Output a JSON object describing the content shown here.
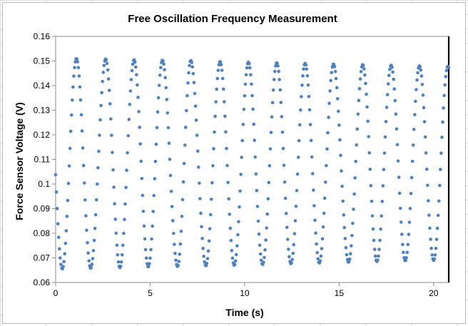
{
  "chart_data": {
    "type": "scatter",
    "title": "Free Oscillation Frequency Measurement",
    "xlabel": "Time (s)",
    "ylabel": "Force Sensor Voltage (V)",
    "xlim": [
      0,
      20.8
    ],
    "ylim": [
      0.06,
      0.16
    ],
    "x_ticks": [
      "0",
      "5",
      "10",
      "15",
      "20"
    ],
    "x_tick_values": [
      0,
      5,
      10,
      15,
      20
    ],
    "y_ticks": [
      "0.06",
      "0.07",
      "0.08",
      "0.09",
      "0.1",
      "0.11",
      "0.12",
      "0.13",
      "0.14",
      "0.15",
      "0.16"
    ],
    "y_tick_values": [
      0.06,
      0.07,
      0.08,
      0.09,
      0.1,
      0.11,
      0.12,
      0.13,
      0.14,
      0.15,
      0.16
    ],
    "grid": false,
    "legend": "none",
    "marker_color": "#4f81bd",
    "series": [
      {
        "sample_interval_s": 0.04,
        "t_end_s": 20.8,
        "peaks": [
          {
            "t": 1.1,
            "v": 0.151
          },
          {
            "t": 2.65,
            "v": 0.1508
          },
          {
            "t": 4.15,
            "v": 0.1505
          },
          {
            "t": 5.65,
            "v": 0.1503
          },
          {
            "t": 7.15,
            "v": 0.1502
          },
          {
            "t": 8.7,
            "v": 0.1498
          },
          {
            "t": 10.2,
            "v": 0.1495
          },
          {
            "t": 11.7,
            "v": 0.1493
          },
          {
            "t": 13.2,
            "v": 0.149
          },
          {
            "t": 14.7,
            "v": 0.1488
          },
          {
            "t": 16.25,
            "v": 0.1485
          },
          {
            "t": 17.75,
            "v": 0.1483
          },
          {
            "t": 19.25,
            "v": 0.148
          },
          {
            "t": 20.75,
            "v": 0.1478
          }
        ],
        "troughs": [
          {
            "t": 0.35,
            "v": 0.0655
          },
          {
            "t": 1.85,
            "v": 0.0658
          },
          {
            "t": 3.4,
            "v": 0.066
          },
          {
            "t": 4.9,
            "v": 0.0663
          },
          {
            "t": 6.45,
            "v": 0.0665
          },
          {
            "t": 7.95,
            "v": 0.0668
          },
          {
            "t": 9.45,
            "v": 0.067
          },
          {
            "t": 10.95,
            "v": 0.0673
          },
          {
            "t": 12.45,
            "v": 0.0676
          },
          {
            "t": 13.95,
            "v": 0.0679
          },
          {
            "t": 15.5,
            "v": 0.0682
          },
          {
            "t": 17.0,
            "v": 0.0685
          },
          {
            "t": 18.5,
            "v": 0.0688
          },
          {
            "t": 20.0,
            "v": 0.069
          }
        ]
      }
    ]
  }
}
